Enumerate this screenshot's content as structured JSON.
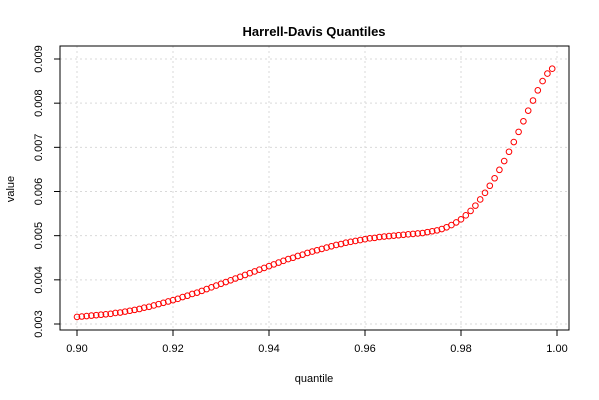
{
  "chart_data": {
    "type": "scatter",
    "title": "Harrell-Davis Quantiles",
    "xlabel": "quantile",
    "ylabel": "value",
    "xlim": [
      0.9,
      1.0
    ],
    "ylim": [
      0.003,
      0.009
    ],
    "x_ticks": [
      "0.90",
      "0.92",
      "0.94",
      "0.96",
      "0.98",
      "1.00"
    ],
    "x_tick_values": [
      0.9,
      0.92,
      0.94,
      0.96,
      0.98,
      1.0
    ],
    "y_ticks": [
      "0.003",
      "0.004",
      "0.005",
      "0.006",
      "0.007",
      "0.008",
      "0.009"
    ],
    "y_tick_values": [
      0.003,
      0.004,
      0.005,
      0.006,
      0.007,
      0.008,
      0.009
    ],
    "grid": true,
    "marker": "open-circle",
    "point_color": "#ff0000",
    "series": [
      {
        "x": [
          0.9,
          0.901,
          0.902,
          0.903,
          0.904,
          0.905,
          0.906,
          0.907,
          0.908,
          0.909,
          0.91,
          0.911,
          0.912,
          0.913,
          0.914,
          0.915,
          0.916,
          0.917,
          0.918,
          0.919,
          0.92,
          0.921,
          0.922,
          0.923,
          0.924,
          0.925,
          0.926,
          0.927,
          0.928,
          0.929,
          0.93,
          0.931,
          0.932,
          0.933,
          0.934,
          0.935,
          0.936,
          0.937,
          0.938,
          0.939,
          0.94,
          0.941,
          0.942,
          0.943,
          0.944,
          0.945,
          0.946,
          0.947,
          0.948,
          0.949,
          0.95,
          0.951,
          0.952,
          0.953,
          0.954,
          0.955,
          0.956,
          0.957,
          0.958,
          0.959,
          0.96,
          0.961,
          0.962,
          0.963,
          0.964,
          0.965,
          0.966,
          0.967,
          0.968,
          0.969,
          0.97,
          0.971,
          0.972,
          0.973,
          0.974,
          0.975,
          0.976,
          0.977,
          0.978,
          0.979,
          0.98,
          0.981,
          0.982,
          0.983,
          0.984,
          0.985,
          0.986,
          0.987,
          0.988,
          0.989,
          0.99,
          0.991,
          0.992,
          0.993,
          0.994,
          0.995,
          0.996,
          0.997,
          0.998,
          0.999
        ],
        "y": [
          0.00316,
          0.00317,
          0.00318,
          0.00319,
          0.0032,
          0.00321,
          0.00322,
          0.00323,
          0.00325,
          0.00326,
          0.00328,
          0.0033,
          0.00332,
          0.00334,
          0.00337,
          0.00339,
          0.00342,
          0.00345,
          0.00348,
          0.00351,
          0.00354,
          0.00357,
          0.00361,
          0.00364,
          0.00368,
          0.00371,
          0.00375,
          0.00379,
          0.00383,
          0.00387,
          0.00391,
          0.00395,
          0.00399,
          0.00403,
          0.00407,
          0.00411,
          0.00415,
          0.00419,
          0.00423,
          0.00427,
          0.00431,
          0.00435,
          0.00439,
          0.00443,
          0.00447,
          0.0045,
          0.00454,
          0.00457,
          0.00461,
          0.00464,
          0.00467,
          0.0047,
          0.00473,
          0.00476,
          0.00479,
          0.00481,
          0.00484,
          0.00486,
          0.00488,
          0.0049,
          0.00492,
          0.00494,
          0.00495,
          0.00497,
          0.00498,
          0.00499,
          0.005,
          0.00501,
          0.00502,
          0.00503,
          0.00504,
          0.00505,
          0.00506,
          0.00508,
          0.0051,
          0.00512,
          0.00515,
          0.00519,
          0.00524,
          0.0053,
          0.00537,
          0.00546,
          0.00556,
          0.00568,
          0.00582,
          0.00597,
          0.00613,
          0.0063,
          0.00649,
          0.00669,
          0.0069,
          0.00712,
          0.00735,
          0.00759,
          0.00783,
          0.00806,
          0.00829,
          0.0085,
          0.00867,
          0.00878
        ]
      }
    ]
  }
}
